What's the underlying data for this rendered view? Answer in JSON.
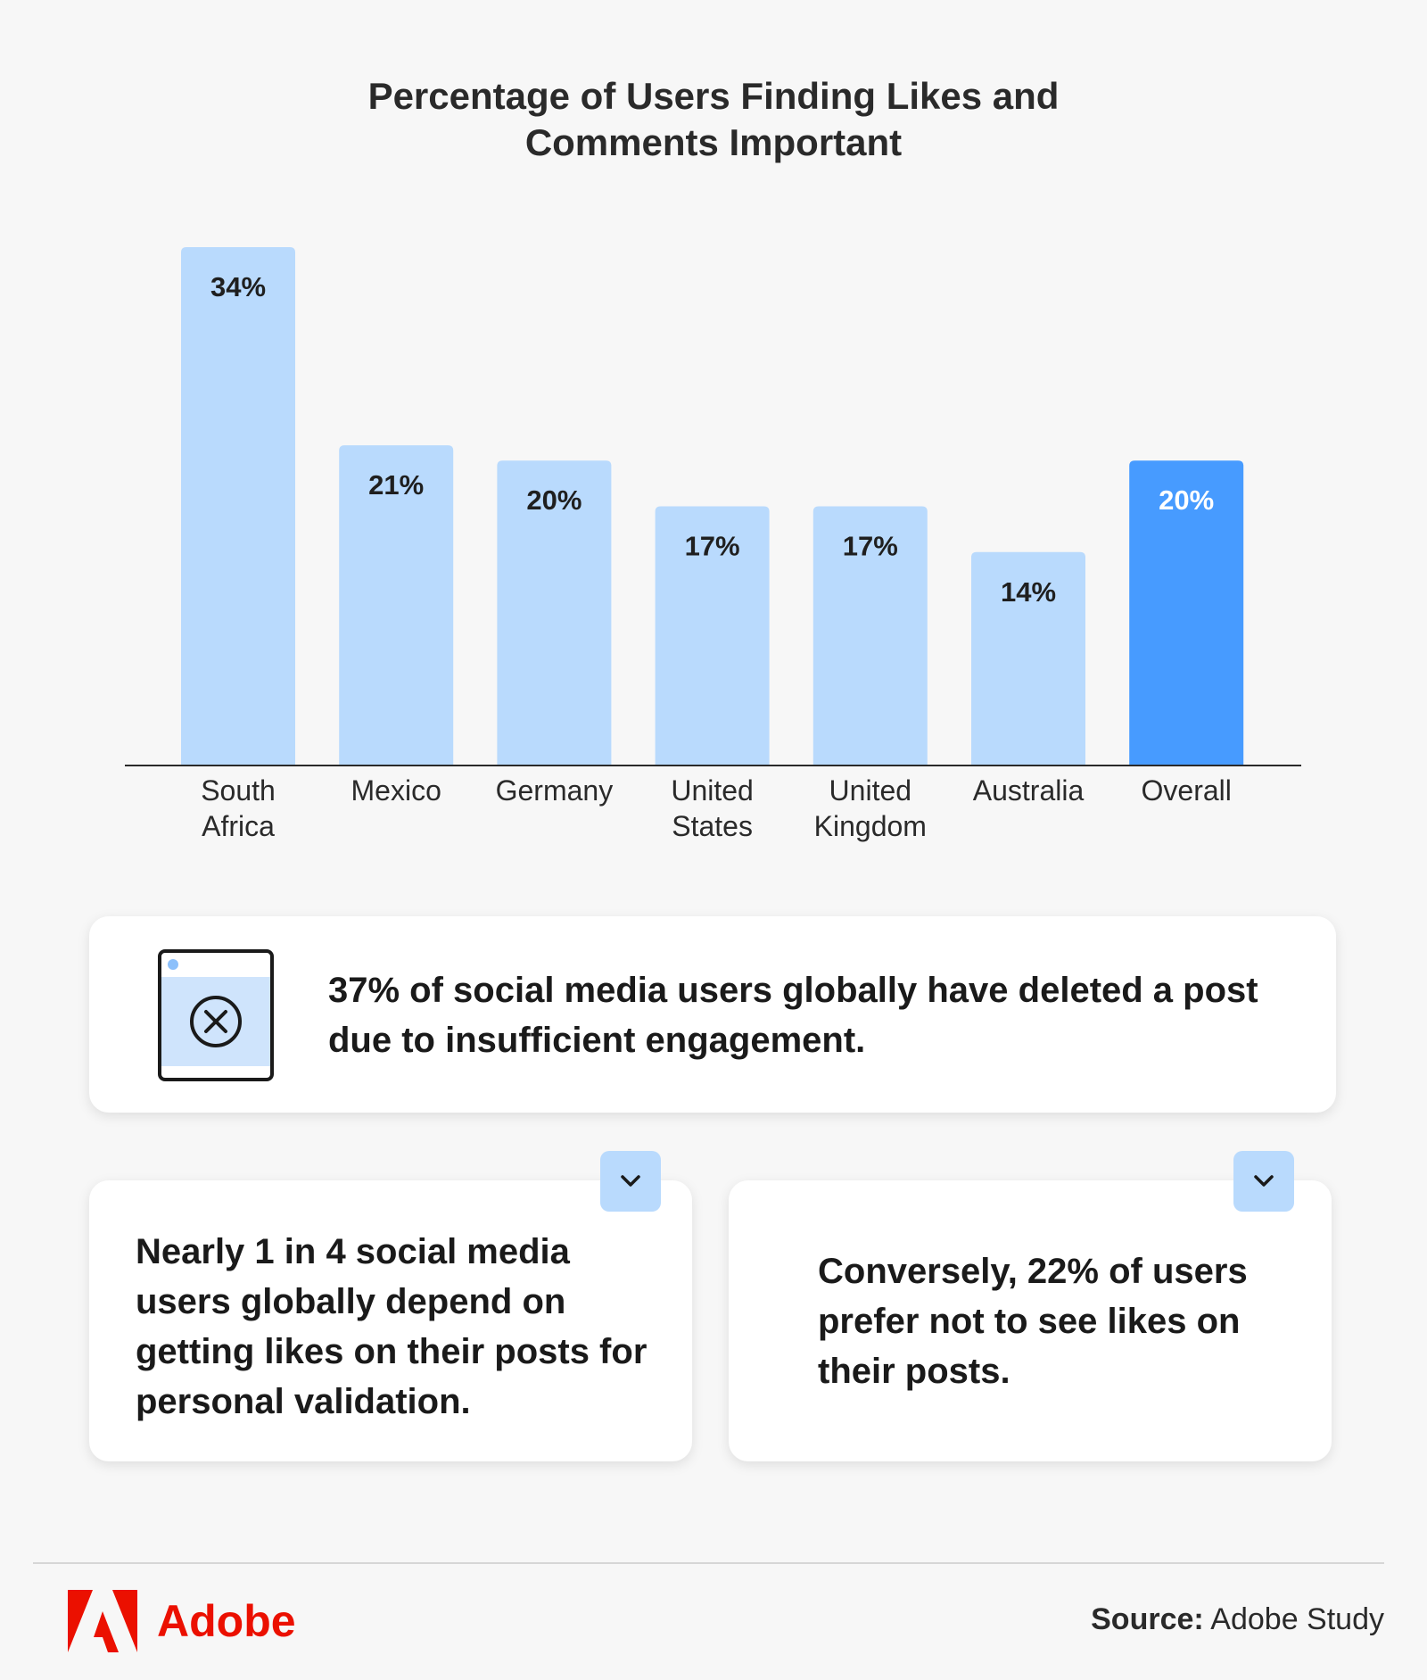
{
  "chart_data": {
    "type": "bar",
    "title_lines": [
      "Percentage of Users Finding Likes and",
      "Comments Important"
    ],
    "categories": [
      [
        "South",
        "Africa"
      ],
      [
        "Mexico"
      ],
      [
        "Germany"
      ],
      [
        "United",
        "States"
      ],
      [
        "United",
        "Kingdom"
      ],
      [
        "Australia"
      ],
      [
        "Overall"
      ]
    ],
    "values": [
      34,
      21,
      20,
      17,
      17,
      14,
      20
    ],
    "value_labels": [
      "34%",
      "21%",
      "20%",
      "17%",
      "17%",
      "14%",
      "20%"
    ],
    "unit": "%",
    "highlight_index": 6,
    "colors": {
      "bar": "#b9dafd",
      "highlight": "#479bff",
      "label": "#1f1f1f",
      "highlight_label": "#ffffff"
    },
    "ylim": [
      0,
      34
    ],
    "grid": false,
    "legend": "none"
  },
  "cards": {
    "top": "37% of social media users globally have deleted a post due to insufficient engagement.",
    "left": "Nearly 1 in 4 social media users globally depend on getting likes on their posts for personal validation.",
    "right": "Conversely, 22% of users prefer not to see likes on their posts.",
    "top_icon": "deleted-post-icon",
    "chevron_icon": "chevron-down-icon"
  },
  "footer": {
    "brand": "Adobe",
    "brand_color": "#eb1000",
    "source_label": "Source:",
    "source_value": "Adobe Study"
  }
}
